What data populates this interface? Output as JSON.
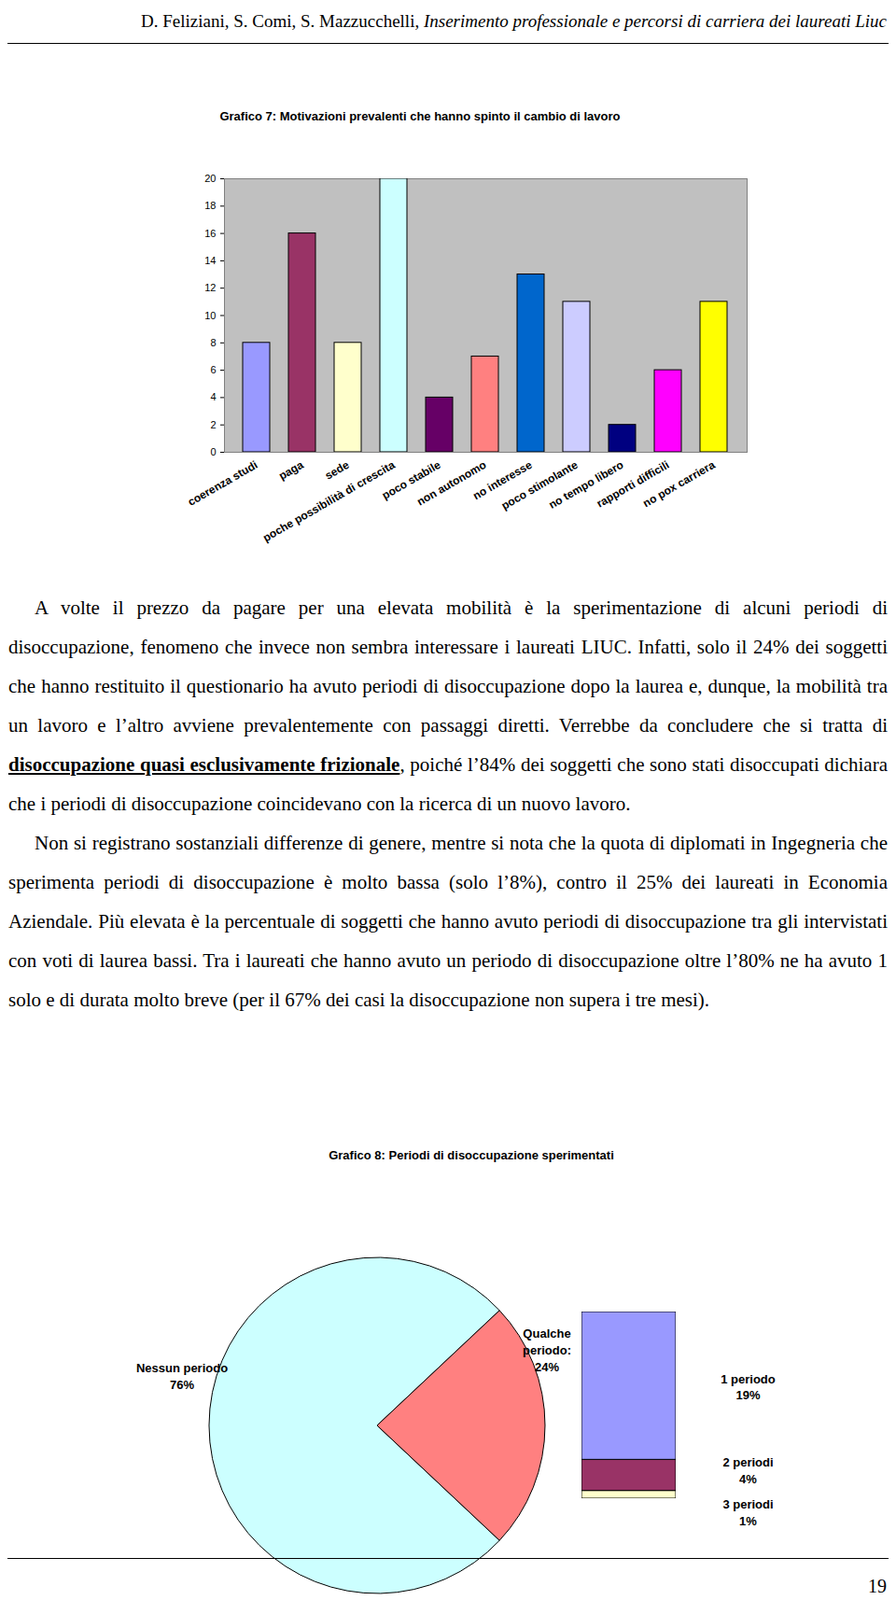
{
  "header": {
    "authors": "D. Feliziani, S. Comi, S. Mazzucchelli,",
    "title": "Inserimento professionale e percorsi di carriera dei laureati Liuc"
  },
  "chart_data": [
    {
      "type": "bar",
      "title": "Grafico 7: Motivazioni prevalenti che hanno spinto il cambio di lavoro",
      "categories": [
        "coerenza studi",
        "paga",
        "sede",
        "poche possibilità di crescita",
        "poco stabile",
        "non autonomo",
        "no interesse",
        "poco stimolante",
        "no tempo libero",
        "rapporti difficili",
        "no pox carriera"
      ],
      "values": [
        8,
        16,
        8,
        20,
        4,
        7,
        13,
        11,
        2,
        6,
        11
      ],
      "colors": [
        "#9999ff",
        "#993366",
        "#ffffcc",
        "#ccffff",
        "#660066",
        "#ff8080",
        "#0066cc",
        "#ccccff",
        "#000080",
        "#ff00ff",
        "#ffff00"
      ],
      "ylim": [
        0,
        20
      ],
      "yticks": [
        0,
        2,
        4,
        6,
        8,
        10,
        12,
        14,
        16,
        18,
        20
      ],
      "grid": false
    },
    {
      "type": "pie",
      "title": "Grafico 8: Periodi di disoccupazione sperimentati",
      "categories": [
        "Nessun periodo",
        "Qualche periodo:"
      ],
      "values": [
        76,
        24
      ],
      "value_labels": [
        "76%",
        "24%"
      ],
      "colors": [
        "#ccffff",
        "#ff8080"
      ],
      "data_labels": true,
      "breakdown": {
        "type": "bar",
        "stacked": true,
        "categories": [
          "1 periodo",
          "2 periodi",
          "3 periodi"
        ],
        "values": [
          19,
          4,
          1
        ],
        "value_labels": [
          "19%",
          "4%",
          "1%"
        ],
        "colors": [
          "#9999ff",
          "#993366",
          "#ffffcc"
        ],
        "data_labels": true
      }
    }
  ],
  "paragraphs": [
    [
      {
        "text": "A volte il prezzo da pagare per una elevata mobilità è la sperimentazione di alcuni periodi di disoccupazione, fenomeno che invece non sembra interessare i laureati LIUC. Infatti, solo il 24% dei soggetti che hanno restituito il questionario ha avuto periodi di disoccupazione dopo la laurea e, dunque, la mobilità tra un lavoro e l’altro avviene prevalentemente con passaggi diretti. Verrebbe da concludere che si tratta di "
      },
      {
        "text": "disoccupazione quasi esclusivamente frizionale",
        "strong": true
      },
      {
        "text": ", poiché l’84% dei soggetti che sono stati disoccupati dichiara che i periodi di disoccupazione coincidevano con la ricerca di un nuovo lavoro."
      }
    ],
    [
      {
        "text": "Non si registrano sostanziali differenze di genere, mentre si nota che la quota di diplomati in Ingegneria che sperimenta periodi di disoccupazione è molto bassa (solo l’8%), contro il 25% dei laureati in Economia Aziendale. Più elevata è la percentuale di soggetti che hanno avuto periodi di disoccupazione tra gli intervistati con voti di laurea bassi. Tra i laureati che hanno avuto un periodo di disoccupazione oltre l’80% ne ha avuto 1 solo e di durata molto breve (per il 67% dei casi la disoccupazione non supera i tre mesi)."
      }
    ]
  ],
  "page_number": 19
}
